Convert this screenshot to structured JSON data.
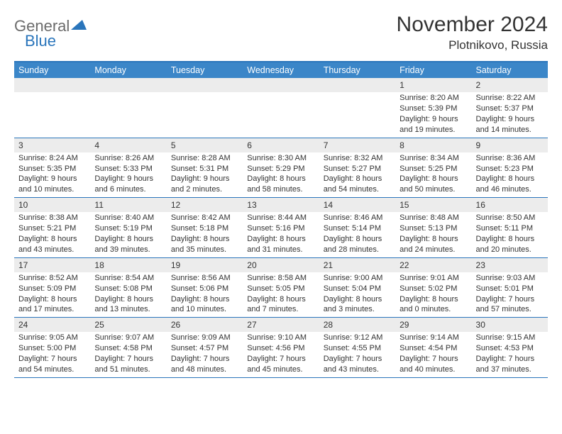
{
  "brand": {
    "part1": "General",
    "part2": "Blue"
  },
  "title": "November 2024",
  "location": "Plotnikovo, Russia",
  "colors": {
    "header_bg": "#3b86c8",
    "border": "#2a75bb",
    "daynum_bg": "#ececec",
    "text": "#333333",
    "logo_gray": "#6b6b6b",
    "logo_blue": "#2a75bb"
  },
  "weekdays": [
    "Sunday",
    "Monday",
    "Tuesday",
    "Wednesday",
    "Thursday",
    "Friday",
    "Saturday"
  ],
  "weeks": [
    [
      {
        "num": "",
        "sunrise": "",
        "sunset": "",
        "daylight1": "",
        "daylight2": ""
      },
      {
        "num": "",
        "sunrise": "",
        "sunset": "",
        "daylight1": "",
        "daylight2": ""
      },
      {
        "num": "",
        "sunrise": "",
        "sunset": "",
        "daylight1": "",
        "daylight2": ""
      },
      {
        "num": "",
        "sunrise": "",
        "sunset": "",
        "daylight1": "",
        "daylight2": ""
      },
      {
        "num": "",
        "sunrise": "",
        "sunset": "",
        "daylight1": "",
        "daylight2": ""
      },
      {
        "num": "1",
        "sunrise": "Sunrise: 8:20 AM",
        "sunset": "Sunset: 5:39 PM",
        "daylight1": "Daylight: 9 hours",
        "daylight2": "and 19 minutes."
      },
      {
        "num": "2",
        "sunrise": "Sunrise: 8:22 AM",
        "sunset": "Sunset: 5:37 PM",
        "daylight1": "Daylight: 9 hours",
        "daylight2": "and 14 minutes."
      }
    ],
    [
      {
        "num": "3",
        "sunrise": "Sunrise: 8:24 AM",
        "sunset": "Sunset: 5:35 PM",
        "daylight1": "Daylight: 9 hours",
        "daylight2": "and 10 minutes."
      },
      {
        "num": "4",
        "sunrise": "Sunrise: 8:26 AM",
        "sunset": "Sunset: 5:33 PM",
        "daylight1": "Daylight: 9 hours",
        "daylight2": "and 6 minutes."
      },
      {
        "num": "5",
        "sunrise": "Sunrise: 8:28 AM",
        "sunset": "Sunset: 5:31 PM",
        "daylight1": "Daylight: 9 hours",
        "daylight2": "and 2 minutes."
      },
      {
        "num": "6",
        "sunrise": "Sunrise: 8:30 AM",
        "sunset": "Sunset: 5:29 PM",
        "daylight1": "Daylight: 8 hours",
        "daylight2": "and 58 minutes."
      },
      {
        "num": "7",
        "sunrise": "Sunrise: 8:32 AM",
        "sunset": "Sunset: 5:27 PM",
        "daylight1": "Daylight: 8 hours",
        "daylight2": "and 54 minutes."
      },
      {
        "num": "8",
        "sunrise": "Sunrise: 8:34 AM",
        "sunset": "Sunset: 5:25 PM",
        "daylight1": "Daylight: 8 hours",
        "daylight2": "and 50 minutes."
      },
      {
        "num": "9",
        "sunrise": "Sunrise: 8:36 AM",
        "sunset": "Sunset: 5:23 PM",
        "daylight1": "Daylight: 8 hours",
        "daylight2": "and 46 minutes."
      }
    ],
    [
      {
        "num": "10",
        "sunrise": "Sunrise: 8:38 AM",
        "sunset": "Sunset: 5:21 PM",
        "daylight1": "Daylight: 8 hours",
        "daylight2": "and 43 minutes."
      },
      {
        "num": "11",
        "sunrise": "Sunrise: 8:40 AM",
        "sunset": "Sunset: 5:19 PM",
        "daylight1": "Daylight: 8 hours",
        "daylight2": "and 39 minutes."
      },
      {
        "num": "12",
        "sunrise": "Sunrise: 8:42 AM",
        "sunset": "Sunset: 5:18 PM",
        "daylight1": "Daylight: 8 hours",
        "daylight2": "and 35 minutes."
      },
      {
        "num": "13",
        "sunrise": "Sunrise: 8:44 AM",
        "sunset": "Sunset: 5:16 PM",
        "daylight1": "Daylight: 8 hours",
        "daylight2": "and 31 minutes."
      },
      {
        "num": "14",
        "sunrise": "Sunrise: 8:46 AM",
        "sunset": "Sunset: 5:14 PM",
        "daylight1": "Daylight: 8 hours",
        "daylight2": "and 28 minutes."
      },
      {
        "num": "15",
        "sunrise": "Sunrise: 8:48 AM",
        "sunset": "Sunset: 5:13 PM",
        "daylight1": "Daylight: 8 hours",
        "daylight2": "and 24 minutes."
      },
      {
        "num": "16",
        "sunrise": "Sunrise: 8:50 AM",
        "sunset": "Sunset: 5:11 PM",
        "daylight1": "Daylight: 8 hours",
        "daylight2": "and 20 minutes."
      }
    ],
    [
      {
        "num": "17",
        "sunrise": "Sunrise: 8:52 AM",
        "sunset": "Sunset: 5:09 PM",
        "daylight1": "Daylight: 8 hours",
        "daylight2": "and 17 minutes."
      },
      {
        "num": "18",
        "sunrise": "Sunrise: 8:54 AM",
        "sunset": "Sunset: 5:08 PM",
        "daylight1": "Daylight: 8 hours",
        "daylight2": "and 13 minutes."
      },
      {
        "num": "19",
        "sunrise": "Sunrise: 8:56 AM",
        "sunset": "Sunset: 5:06 PM",
        "daylight1": "Daylight: 8 hours",
        "daylight2": "and 10 minutes."
      },
      {
        "num": "20",
        "sunrise": "Sunrise: 8:58 AM",
        "sunset": "Sunset: 5:05 PM",
        "daylight1": "Daylight: 8 hours",
        "daylight2": "and 7 minutes."
      },
      {
        "num": "21",
        "sunrise": "Sunrise: 9:00 AM",
        "sunset": "Sunset: 5:04 PM",
        "daylight1": "Daylight: 8 hours",
        "daylight2": "and 3 minutes."
      },
      {
        "num": "22",
        "sunrise": "Sunrise: 9:01 AM",
        "sunset": "Sunset: 5:02 PM",
        "daylight1": "Daylight: 8 hours",
        "daylight2": "and 0 minutes."
      },
      {
        "num": "23",
        "sunrise": "Sunrise: 9:03 AM",
        "sunset": "Sunset: 5:01 PM",
        "daylight1": "Daylight: 7 hours",
        "daylight2": "and 57 minutes."
      }
    ],
    [
      {
        "num": "24",
        "sunrise": "Sunrise: 9:05 AM",
        "sunset": "Sunset: 5:00 PM",
        "daylight1": "Daylight: 7 hours",
        "daylight2": "and 54 minutes."
      },
      {
        "num": "25",
        "sunrise": "Sunrise: 9:07 AM",
        "sunset": "Sunset: 4:58 PM",
        "daylight1": "Daylight: 7 hours",
        "daylight2": "and 51 minutes."
      },
      {
        "num": "26",
        "sunrise": "Sunrise: 9:09 AM",
        "sunset": "Sunset: 4:57 PM",
        "daylight1": "Daylight: 7 hours",
        "daylight2": "and 48 minutes."
      },
      {
        "num": "27",
        "sunrise": "Sunrise: 9:10 AM",
        "sunset": "Sunset: 4:56 PM",
        "daylight1": "Daylight: 7 hours",
        "daylight2": "and 45 minutes."
      },
      {
        "num": "28",
        "sunrise": "Sunrise: 9:12 AM",
        "sunset": "Sunset: 4:55 PM",
        "daylight1": "Daylight: 7 hours",
        "daylight2": "and 43 minutes."
      },
      {
        "num": "29",
        "sunrise": "Sunrise: 9:14 AM",
        "sunset": "Sunset: 4:54 PM",
        "daylight1": "Daylight: 7 hours",
        "daylight2": "and 40 minutes."
      },
      {
        "num": "30",
        "sunrise": "Sunrise: 9:15 AM",
        "sunset": "Sunset: 4:53 PM",
        "daylight1": "Daylight: 7 hours",
        "daylight2": "and 37 minutes."
      }
    ]
  ]
}
